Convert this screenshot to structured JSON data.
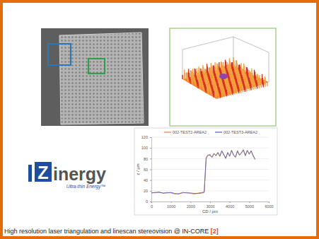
{
  "chart_data": {
    "type": "line",
    "x": [
      0,
      200,
      400,
      600,
      800,
      1000,
      1200,
      1400,
      1600,
      1800,
      2000,
      2200,
      2400,
      2600,
      2700,
      2800,
      2900,
      3000,
      3100,
      3200,
      3300,
      3400,
      3500,
      3600,
      3700,
      3800,
      3900,
      4000,
      4100,
      4200,
      4300,
      4400,
      4500,
      4600,
      4700,
      4800,
      4900,
      5000,
      5100,
      5200,
      5300
    ],
    "series": [
      {
        "name": "002-TEST2-AREA2",
        "color": "#ed7d31",
        "values": [
          17,
          16,
          18,
          15,
          17,
          16,
          14,
          15,
          16,
          17,
          15,
          14,
          16,
          17,
          18,
          80,
          86,
          88,
          82,
          90,
          85,
          92,
          84,
          95,
          88,
          80,
          92,
          84,
          96,
          86,
          82,
          95,
          86,
          90,
          97,
          85,
          96,
          88,
          95,
          85,
          78
        ]
      },
      {
        "name": "002-TEST3-AREA2",
        "color": "#4f5fbf",
        "values": [
          16,
          17,
          17,
          16,
          16,
          17,
          15,
          14,
          17,
          16,
          16,
          15,
          15,
          16,
          17,
          82,
          87,
          86,
          83,
          89,
          86,
          91,
          85,
          94,
          87,
          81,
          91,
          85,
          95,
          87,
          83,
          94,
          87,
          91,
          96,
          86,
          95,
          89,
          94,
          86,
          79
        ]
      }
    ],
    "x_label": "CD / μm",
    "y_label": "z / μm",
    "xlim": [
      0,
      6000
    ],
    "xticks": [
      0,
      1000,
      2000,
      3000,
      4000,
      5000,
      6000
    ],
    "ylim": [
      0,
      120
    ],
    "yticks": [
      0,
      20,
      40,
      60,
      80,
      100,
      120
    ],
    "grid": true,
    "legend": "top"
  },
  "slide": {
    "caption": "High resolution laser triangulation and linescan stereovision @ IN-CORE",
    "reference": "[2]",
    "logo": {
      "mark": "Z",
      "name": "inergy",
      "tagline": "Ultra-thin Energy™"
    }
  }
}
